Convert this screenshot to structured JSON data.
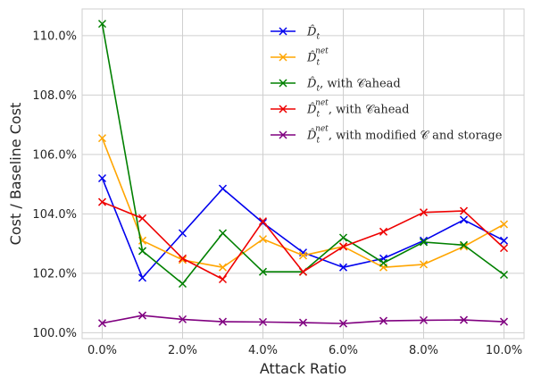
{
  "chart_data": {
    "type": "line",
    "xlabel": "Attack Ratio",
    "ylabel": "Cost / Baseline Cost",
    "xlim": [
      -0.5,
      10.5
    ],
    "ylim": [
      99.8,
      110.9
    ],
    "x": [
      0,
      1,
      2,
      3,
      4,
      5,
      6,
      7,
      8,
      9,
      10
    ],
    "x_ticks": [
      0,
      2,
      4,
      6,
      8,
      10
    ],
    "x_tick_labels": [
      "0.0%",
      "2.0%",
      "4.0%",
      "6.0%",
      "8.0%",
      "10.0%"
    ],
    "y_ticks": [
      100,
      102,
      104,
      106,
      108,
      110
    ],
    "y_tick_labels": [
      "100.0%",
      "102.0%",
      "104.0%",
      "106.0%",
      "108.0%",
      "110.0%"
    ],
    "grid": true,
    "legend_position": "top-center",
    "marker": "x",
    "series": [
      {
        "name": "D̂t",
        "legend": {
          "base": "D̂",
          "sub": "t",
          "sup": "",
          "suffix": ""
        },
        "color": "#0000ee",
        "values": [
          105.2,
          101.85,
          103.35,
          104.85,
          103.7,
          102.7,
          102.2,
          102.5,
          103.1,
          103.8,
          103.1
        ]
      },
      {
        "name": "D̂t^net",
        "legend": {
          "base": "D̂",
          "sub": "t",
          "sup": "net",
          "suffix": ""
        },
        "color": "#ffa500",
        "values": [
          106.55,
          103.1,
          102.45,
          102.2,
          103.15,
          102.6,
          102.9,
          102.2,
          102.3,
          102.9,
          103.65
        ]
      },
      {
        "name": "D̂t, with C_ahead",
        "legend": {
          "base": "D̂",
          "sub": "t",
          "sup": "",
          "suffix": ", with 𝒞ahead"
        },
        "color": "#008000",
        "values": [
          110.4,
          102.75,
          101.65,
          103.35,
          102.05,
          102.05,
          103.2,
          102.35,
          103.05,
          102.95,
          101.95
        ]
      },
      {
        "name": "D̂t^net, with C_ahead",
        "legend": {
          "base": "D̂",
          "sub": "t",
          "sup": "net",
          "suffix": ", with 𝒞ahead"
        },
        "color": "#ee0000",
        "values": [
          104.4,
          103.85,
          102.5,
          101.8,
          103.75,
          102.05,
          102.9,
          103.4,
          104.05,
          104.1,
          102.85
        ]
      },
      {
        "name": "D̂t^net, with modified C and storage",
        "legend": {
          "base": "D̂",
          "sub": "t",
          "sup": "net",
          "suffix": ", with modified 𝒞 and storage"
        },
        "color": "#800080",
        "values": [
          100.32,
          100.58,
          100.45,
          100.37,
          100.36,
          100.34,
          100.31,
          100.4,
          100.42,
          100.43,
          100.37
        ]
      }
    ]
  }
}
